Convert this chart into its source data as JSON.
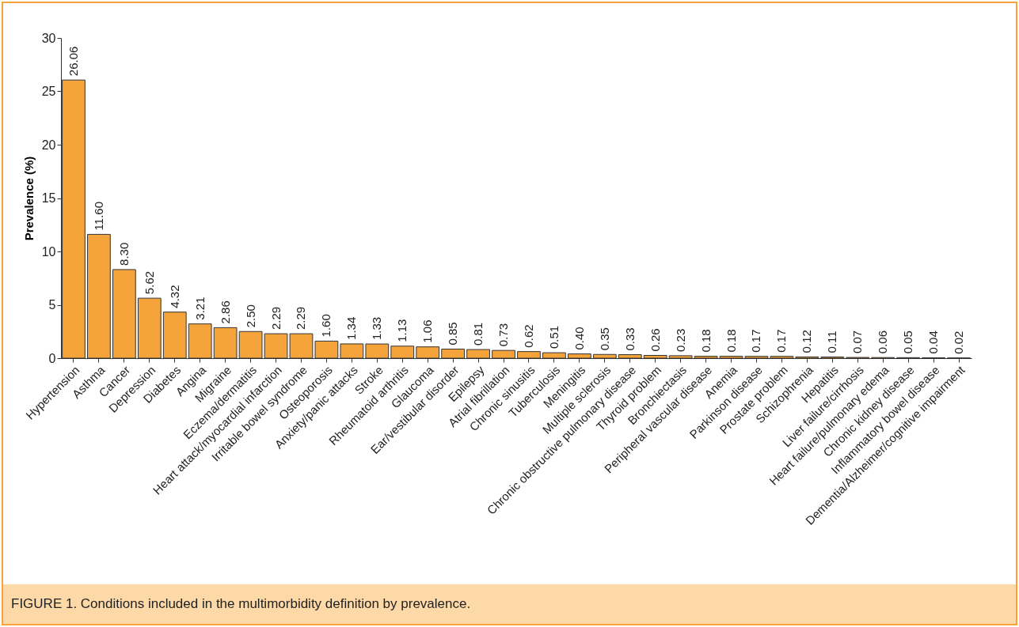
{
  "chart_data": {
    "type": "bar",
    "ylabel": "Prevalence (%)",
    "categories": [
      "Hypertension",
      "Asthma",
      "Cancer",
      "Depression",
      "Diabetes",
      "Angina",
      "Migraine",
      "Eczema/dermatitis",
      "Heart attack/myocardial infarction",
      "Irritable bowel syndrome",
      "Osteoporosis",
      "Anxiety/panic attacks",
      "Stroke",
      "Rheumatoid arthritis",
      "Glaucoma",
      "Ear/vestibular disorder",
      "Epilepsy",
      "Atrial fibrillation",
      "Chronic sinusitis",
      "Tuberculosis",
      "Meningitis",
      "Multiple sclerosis",
      "Chronic obstructive pulmonary disease",
      "Thyroid problem",
      "Bronchiectasis",
      "Peripheral vascular disease",
      "Anemia",
      "Parkinson disease",
      "Prostate problem",
      "Schizophrenia",
      "Hepatitis",
      "Liver failure/cirrhosis",
      "Heart failure/pulmonary edema",
      "Chronic kidney disease",
      "Inflammatory bowel disease",
      "Dementia/Alzheimer/cognitive impairment"
    ],
    "values": [
      26.06,
      11.6,
      8.3,
      5.62,
      4.32,
      3.21,
      2.86,
      2.5,
      2.29,
      2.29,
      1.6,
      1.34,
      1.33,
      1.13,
      1.06,
      0.85,
      0.81,
      0.73,
      0.62,
      0.51,
      0.4,
      0.35,
      0.33,
      0.26,
      0.23,
      0.18,
      0.18,
      0.17,
      0.17,
      0.12,
      0.11,
      0.07,
      0.06,
      0.05,
      0.04,
      0.02
    ],
    "value_labels": [
      "26.06",
      "11.60",
      "8.30",
      "5.62",
      "4.32",
      "3.21",
      "2.86",
      "2.50",
      "2.29",
      "2.29",
      "1.60",
      "1.34",
      "1.33",
      "1.13",
      "1.06",
      "0.85",
      "0.81",
      "0.73",
      "0.62",
      "0.51",
      "0.40",
      "0.35",
      "0.33",
      "0.26",
      "0.23",
      "0.18",
      "0.18",
      "0.17",
      "0.17",
      "0.12",
      "0.11",
      "0.07",
      "0.06",
      "0.05",
      "0.04",
      "0.02"
    ],
    "color": "#f5a43c",
    "ylim": [
      0,
      30
    ],
    "yticks": [
      0,
      5,
      10,
      15,
      20,
      25,
      30
    ],
    "grid": false,
    "annotations": [
      "FIGURE 1. Conditions included in the multimorbidity definition by prevalence."
    ]
  }
}
